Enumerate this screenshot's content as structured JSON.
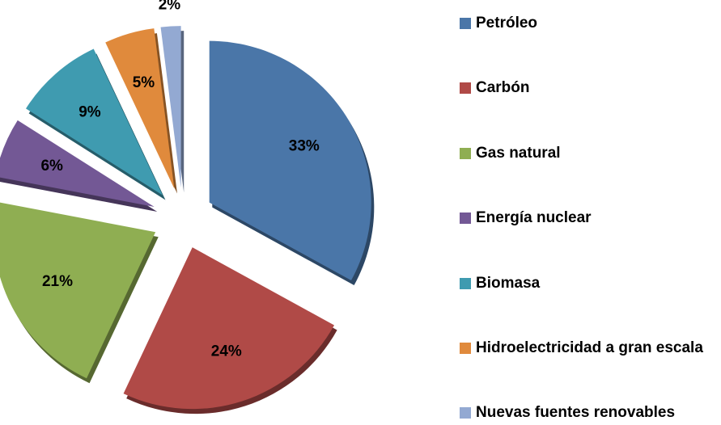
{
  "chart_data": {
    "type": "pie",
    "categories": [
      "Petróleo",
      "Carbón",
      "Gas natural",
      "Energía nuclear",
      "Biomasa",
      "Hidroelectricidad a gran escala",
      "Nuevas fuentes renovables"
    ],
    "values": [
      33,
      24,
      21,
      6,
      9,
      5,
      2
    ],
    "value_labels": [
      "33%",
      "24%",
      "21%",
      "6%",
      "9%",
      "5%",
      "2%"
    ],
    "colors": [
      "#4a76a8",
      "#b04a47",
      "#8fae52",
      "#735895",
      "#3f9bb0",
      "#e08a3c",
      "#93a9d2"
    ],
    "legend": "right"
  }
}
